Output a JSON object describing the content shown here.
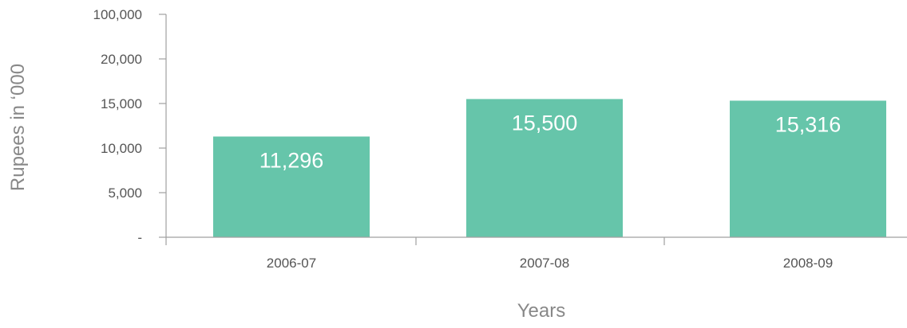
{
  "chart_data": {
    "type": "bar",
    "title": "",
    "xlabel": "Years",
    "ylabel": "Rupees in ‘000",
    "categories": [
      "2006-07",
      "2007-08",
      "2008-09"
    ],
    "values": [
      11296,
      15500,
      15316
    ],
    "value_labels": [
      "11,296",
      "15,500",
      "15,316"
    ],
    "y_ticks": [
      0,
      5000,
      10000,
      15000,
      20000,
      100000
    ],
    "y_tick_labels": [
      "-",
      "5,000",
      "10,000",
      "15,000",
      "20,000",
      "100,000"
    ],
    "axis_break": "tick labels are evenly spaced (non-linear scale: top tick 100,000 follows 20,000)",
    "grid": false,
    "legend": "none",
    "colors": {
      "bar": "#66c5aa",
      "bar_label": "#ffffff",
      "axis": "#a0a0a0",
      "tick_text": "#555555",
      "axis_title": "#888888"
    }
  }
}
